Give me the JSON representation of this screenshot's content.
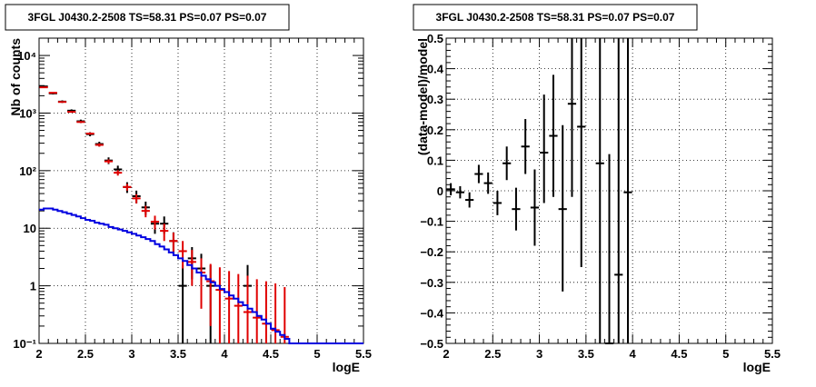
{
  "chart_data": [
    {
      "type": "scatter",
      "title": "3FGL J0430.2-2508 TS=58.31 PS=0.07 PS=0.07",
      "xlabel": "logE",
      "ylabel": "Nb of counts",
      "xlim": [
        2,
        5.5
      ],
      "ylim": [
        0.1,
        20000
      ],
      "yscale": "log",
      "grid": true,
      "xticks": [
        {
          "v": 2,
          "t": "2"
        },
        {
          "v": 2.5,
          "t": "2.5"
        },
        {
          "v": 3,
          "t": "3"
        },
        {
          "v": 3.5,
          "t": "3.5"
        },
        {
          "v": 4,
          "t": "4"
        },
        {
          "v": 4.5,
          "t": "4.5"
        },
        {
          "v": 5,
          "t": "5"
        },
        {
          "v": 5.5,
          "t": "5.5"
        }
      ],
      "yticks": [
        {
          "v": 0.1,
          "t": "10⁻¹"
        },
        {
          "v": 1,
          "t": "1"
        },
        {
          "v": 10,
          "t": "10"
        },
        {
          "v": 100,
          "t": "10²"
        },
        {
          "v": 1000,
          "t": "10³"
        },
        {
          "v": 10000,
          "t": "10⁴"
        }
      ],
      "series": [
        {
          "kind": "points",
          "color": "#000000",
          "points": [
            {
              "x": 2.05,
              "y": 2900,
              "lo": 2800,
              "hi": 3000
            },
            {
              "x": 2.15,
              "y": 2200,
              "lo": 2110,
              "hi": 2290
            },
            {
              "x": 2.25,
              "y": 1580,
              "lo": 1500,
              "hi": 1660
            },
            {
              "x": 2.35,
              "y": 1100,
              "lo": 1040,
              "hi": 1160
            },
            {
              "x": 2.45,
              "y": 720,
              "lo": 670,
              "hi": 770
            },
            {
              "x": 2.55,
              "y": 430,
              "lo": 395,
              "hi": 465
            },
            {
              "x": 2.65,
              "y": 290,
              "lo": 262,
              "hi": 318
            },
            {
              "x": 2.75,
              "y": 150,
              "lo": 130,
              "hi": 170
            },
            {
              "x": 2.85,
              "y": 105,
              "lo": 88,
              "hi": 122
            },
            {
              "x": 2.95,
              "y": 52,
              "lo": 41,
              "hi": 63
            },
            {
              "x": 3.05,
              "y": 36,
              "lo": 27,
              "hi": 45
            },
            {
              "x": 3.15,
              "y": 23,
              "lo": 17,
              "hi": 29
            },
            {
              "x": 3.25,
              "y": 12,
              "lo": 8,
              "hi": 16
            },
            {
              "x": 3.35,
              "y": 12,
              "lo": 8,
              "hi": 16
            },
            {
              "x": 3.45,
              "y": 6,
              "lo": 3.5,
              "hi": 8.5
            },
            {
              "x": 3.55,
              "y": 1,
              "lo": 0.1,
              "hi": 2.3
            },
            {
              "x": 3.65,
              "y": 3,
              "lo": 1.3,
              "hi": 4.7
            },
            {
              "x": 3.75,
              "y": 2,
              "lo": 0.6,
              "hi": 3.6
            },
            {
              "x": 3.85,
              "y": 1,
              "lo": 0.1,
              "hi": 2.3
            },
            {
              "x": 4.25,
              "y": 1,
              "lo": 0.1,
              "hi": 2.3
            }
          ]
        },
        {
          "kind": "points",
          "color": "#e00000",
          "points": [
            {
              "x": 2.05,
              "y": 2800,
              "lo": 2750,
              "hi": 2850
            },
            {
              "x": 2.15,
              "y": 2250,
              "lo": 2200,
              "hi": 2300
            },
            {
              "x": 2.25,
              "y": 1560,
              "lo": 1520,
              "hi": 1600
            },
            {
              "x": 2.35,
              "y": 1050,
              "lo": 1020,
              "hi": 1080
            },
            {
              "x": 2.45,
              "y": 700,
              "lo": 675,
              "hi": 725
            },
            {
              "x": 2.55,
              "y": 440,
              "lo": 420,
              "hi": 460
            },
            {
              "x": 2.65,
              "y": 280,
              "lo": 262,
              "hi": 298
            },
            {
              "x": 2.75,
              "y": 145,
              "lo": 133,
              "hi": 157
            },
            {
              "x": 2.85,
              "y": 92,
              "lo": 82,
              "hi": 102
            },
            {
              "x": 2.95,
              "y": 52,
              "lo": 45,
              "hi": 59
            },
            {
              "x": 3.05,
              "y": 33,
              "lo": 27,
              "hi": 39
            },
            {
              "x": 3.15,
              "y": 20,
              "lo": 15.5,
              "hi": 24.5
            },
            {
              "x": 3.25,
              "y": 13,
              "lo": 9.5,
              "hi": 16.5
            },
            {
              "x": 3.35,
              "y": 9,
              "lo": 6,
              "hi": 12
            },
            {
              "x": 3.45,
              "y": 6,
              "lo": 3.6,
              "hi": 8.4
            },
            {
              "x": 3.55,
              "y": 4,
              "lo": 2,
              "hi": 6
            },
            {
              "x": 3.65,
              "y": 2.6,
              "lo": 1,
              "hi": 4.2
            },
            {
              "x": 3.75,
              "y": 1.7,
              "lo": 0.4,
              "hi": 3
            },
            {
              "x": 3.85,
              "y": 1.2,
              "lo": 0.2,
              "hi": 2.4
            },
            {
              "x": 3.95,
              "y": 0.85,
              "lo": 0.1,
              "hi": 2.1
            },
            {
              "x": 4.05,
              "y": 0.6,
              "lo": 0.1,
              "hi": 1.8
            },
            {
              "x": 4.15,
              "y": 0.45,
              "lo": 0.1,
              "hi": 1.6
            },
            {
              "x": 4.25,
              "y": 0.35,
              "lo": 0.1,
              "hi": 1.5
            },
            {
              "x": 4.35,
              "y": 0.28,
              "lo": 0.1,
              "hi": 1.3
            },
            {
              "x": 4.45,
              "y": 0.22,
              "lo": 0.1,
              "hi": 1.2
            },
            {
              "x": 4.55,
              "y": 0.17,
              "lo": 0.1,
              "hi": 1.1
            },
            {
              "x": 4.65,
              "y": 0.13,
              "lo": 0.1,
              "hi": 0.95
            }
          ]
        },
        {
          "kind": "step",
          "color": "#0000e0",
          "edges": [
            2.0,
            2.05,
            2.1,
            2.15,
            2.2,
            2.25,
            2.3,
            2.35,
            2.4,
            2.45,
            2.5,
            2.55,
            2.6,
            2.65,
            2.7,
            2.75,
            2.8,
            2.85,
            2.9,
            2.95,
            3.0,
            3.05,
            3.1,
            3.15,
            3.2,
            3.25,
            3.3,
            3.35,
            3.4,
            3.45,
            3.5,
            3.55,
            3.6,
            3.65,
            3.7,
            3.75,
            3.8,
            3.85,
            3.9,
            3.95,
            4.0,
            4.05,
            4.1,
            4.15,
            4.2,
            4.25,
            4.3,
            4.35,
            4.4,
            4.45,
            4.5,
            4.55,
            4.6,
            4.65,
            4.7,
            5.5
          ],
          "values": [
            21,
            22,
            22,
            21,
            20,
            19,
            18,
            17,
            16,
            15,
            14,
            13.5,
            12.5,
            12,
            11.5,
            10.5,
            10,
            9.5,
            9,
            8.5,
            8,
            7.5,
            7,
            6.5,
            6,
            5.3,
            4.8,
            4.3,
            3.8,
            3.4,
            3.0,
            2.7,
            2.3,
            2.0,
            1.7,
            1.5,
            1.3,
            1.15,
            1.0,
            0.88,
            0.78,
            0.68,
            0.6,
            0.52,
            0.46,
            0.4,
            0.35,
            0.3,
            0.26,
            0.22,
            0.18,
            0.16,
            0.14,
            0.12,
            0.1
          ]
        }
      ]
    },
    {
      "type": "scatter",
      "title": "3FGL J0430.2-2508 TS=58.31 PS=0.07 PS=0.07",
      "xlabel": "logE",
      "ylabel": "(data-model)/model",
      "xlim": [
        2,
        5.5
      ],
      "ylim": [
        -0.5,
        0.5
      ],
      "grid": true,
      "xticks": [
        {
          "v": 2,
          "t": "2"
        },
        {
          "v": 2.5,
          "t": "2.5"
        },
        {
          "v": 3,
          "t": "3"
        },
        {
          "v": 3.5,
          "t": "3.5"
        },
        {
          "v": 4,
          "t": "4"
        },
        {
          "v": 4.5,
          "t": "4.5"
        },
        {
          "v": 5,
          "t": "5"
        },
        {
          "v": 5.5,
          "t": "5.5"
        }
      ],
      "yticks": [
        {
          "v": -0.5,
          "t": "−0.5"
        },
        {
          "v": -0.4,
          "t": "−0.4"
        },
        {
          "v": -0.3,
          "t": "−0.3"
        },
        {
          "v": -0.2,
          "t": "−0.2"
        },
        {
          "v": -0.1,
          "t": "−0.1"
        },
        {
          "v": 0,
          "t": "0"
        },
        {
          "v": 0.1,
          "t": "0.1"
        },
        {
          "v": 0.2,
          "t": "0.2"
        },
        {
          "v": 0.3,
          "t": "0.3"
        },
        {
          "v": 0.4,
          "t": "0.4"
        },
        {
          "v": 0.5,
          "t": "0.5"
        }
      ],
      "series": [
        {
          "kind": "points",
          "color": "#000000",
          "points": [
            {
              "x": 2.05,
              "y": 0.005,
              "lo": -0.015,
              "hi": 0.025
            },
            {
              "x": 2.15,
              "y": -0.005,
              "lo": -0.025,
              "hi": 0.015
            },
            {
              "x": 2.25,
              "y": -0.03,
              "lo": -0.055,
              "hi": -0.005
            },
            {
              "x": 2.35,
              "y": 0.055,
              "lo": 0.025,
              "hi": 0.085
            },
            {
              "x": 2.45,
              "y": 0.025,
              "lo": -0.01,
              "hi": 0.06
            },
            {
              "x": 2.55,
              "y": -0.04,
              "lo": -0.08,
              "hi": 0.0
            },
            {
              "x": 2.65,
              "y": 0.09,
              "lo": 0.035,
              "hi": 0.145
            },
            {
              "x": 2.75,
              "y": -0.06,
              "lo": -0.13,
              "hi": 0.01
            },
            {
              "x": 2.85,
              "y": 0.145,
              "lo": 0.055,
              "hi": 0.235
            },
            {
              "x": 2.95,
              "y": -0.055,
              "lo": -0.18,
              "hi": 0.07
            },
            {
              "x": 3.05,
              "y": 0.125,
              "lo": -0.04,
              "hi": 0.315
            },
            {
              "x": 3.15,
              "y": 0.18,
              "lo": -0.02,
              "hi": 0.38
            },
            {
              "x": 3.25,
              "y": -0.06,
              "lo": -0.33,
              "hi": 0.215
            },
            {
              "x": 3.35,
              "y": 0.285,
              "lo": -0.02,
              "hi": 0.5
            },
            {
              "x": 3.45,
              "y": 0.21,
              "lo": -0.25,
              "hi": 0.5
            },
            {
              "x": 3.65,
              "y": 0.09,
              "lo": -0.5,
              "hi": 0.5
            },
            {
              "x": 3.75,
              "y": -0.5,
              "lo": -0.5,
              "hi": 0.12
            },
            {
              "x": 3.85,
              "y": -0.275,
              "lo": -0.5,
              "hi": 0.5
            },
            {
              "x": 3.95,
              "y": -0.005,
              "lo": -0.5,
              "hi": 0.5
            }
          ]
        }
      ]
    }
  ]
}
